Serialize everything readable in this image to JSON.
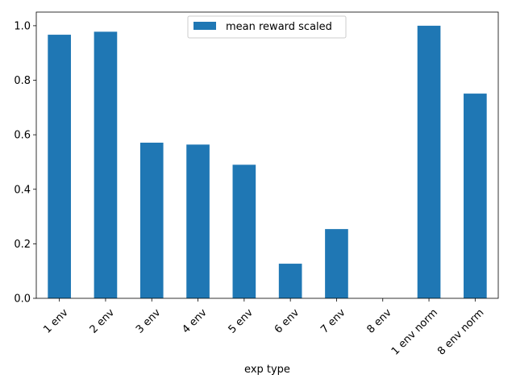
{
  "chart_data": {
    "type": "bar",
    "title": "",
    "xlabel": "exp type",
    "ylabel": "",
    "categories": [
      "1 env",
      "2 env",
      "3 env",
      "4 env",
      "5 env",
      "6 env",
      "7 env",
      "8 env",
      "1 env norm",
      "8 env norm"
    ],
    "series": [
      {
        "name": "mean reward scaled",
        "color": "#1f77b4",
        "values": [
          0.967,
          0.978,
          0.571,
          0.564,
          0.49,
          0.127,
          0.254,
          0.0,
          1.0,
          0.751
        ]
      }
    ],
    "ylim": [
      0,
      1.05
    ],
    "yticks": [
      0.0,
      0.2,
      0.4,
      0.6,
      0.8,
      1.0
    ],
    "ytick_labels": [
      "0.0",
      "0.2",
      "0.4",
      "0.6",
      "0.8",
      "1.0"
    ],
    "grid": false,
    "legend_position": "top-center"
  }
}
